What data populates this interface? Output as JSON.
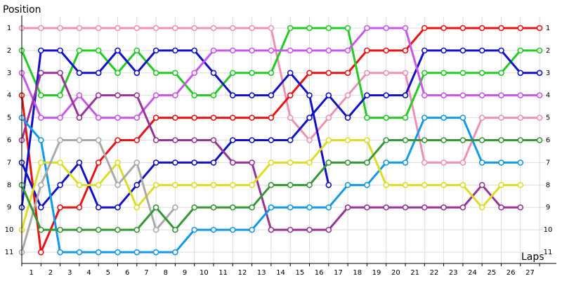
{
  "chart_data": {
    "type": "lap",
    "y_label": "Position",
    "x_label": "Laps",
    "lap_labels": [
      "1",
      "2",
      "3",
      "4",
      "5",
      "6",
      "7",
      "8",
      "9",
      "10",
      "11",
      "12",
      "13",
      "14",
      "15",
      "16",
      "17",
      "18",
      "19",
      "20",
      "21",
      "22",
      "23",
      "24",
      "25",
      "26",
      "27"
    ],
    "ylim": [
      11.5,
      0.5
    ],
    "yticks": [
      1,
      2,
      3,
      4,
      5,
      6,
      7,
      8,
      9,
      10,
      11
    ],
    "grid": true,
    "series": [
      {
        "color": "#f090b4",
        "values": [
          1,
          1,
          1,
          1,
          1,
          1,
          1,
          1,
          1,
          1,
          1,
          1,
          1,
          1,
          5,
          6,
          5,
          4,
          3,
          3,
          3,
          7,
          7,
          7,
          5,
          5,
          5,
          5
        ]
      },
      {
        "color": "#ee1111",
        "values": [
          4,
          11,
          9,
          9,
          7,
          6,
          6,
          5,
          5,
          5,
          5,
          5,
          5,
          5,
          4,
          3,
          3,
          3,
          2,
          2,
          2,
          1,
          1,
          1,
          1,
          1,
          1,
          1
        ]
      },
      {
        "color": "#22cc22",
        "values": [
          2,
          4,
          4,
          2,
          2,
          3,
          2,
          3,
          3,
          4,
          4,
          3,
          3,
          3,
          1,
          1,
          1,
          1,
          5,
          5,
          5,
          3,
          3,
          3,
          3,
          3,
          2,
          2
        ]
      },
      {
        "color": "#1111cc",
        "values": [
          9,
          2,
          2,
          3,
          3,
          2,
          3,
          2,
          2,
          2,
          3,
          4,
          4,
          4,
          3,
          4,
          8,
          null,
          null,
          null,
          null,
          null,
          null,
          null,
          null,
          null,
          null,
          null
        ]
      },
      {
        "color": "#1111cc",
        "values": [
          7,
          9,
          8,
          7,
          9,
          9,
          8,
          7,
          7,
          7,
          7,
          6,
          6,
          6,
          6,
          5,
          4,
          5,
          4,
          4,
          4,
          2,
          2,
          2,
          2,
          2,
          3,
          3
        ]
      },
      {
        "color": "#cc55ee",
        "values": [
          3,
          5,
          5,
          4,
          5,
          5,
          5,
          4,
          4,
          3,
          2,
          2,
          2,
          2,
          2,
          2,
          2,
          2,
          1,
          1,
          1,
          4,
          4,
          4,
          4,
          4,
          4,
          4
        ]
      },
      {
        "color": "#993399",
        "values": [
          6,
          3,
          3,
          5,
          4,
          4,
          4,
          6,
          6,
          6,
          6,
          7,
          7,
          10,
          10,
          10,
          10,
          9,
          9,
          9,
          9,
          9,
          9,
          9,
          8,
          9,
          9,
          null
        ]
      },
      {
        "color": "#1199ee",
        "values": [
          5,
          6,
          11,
          11,
          11,
          11,
          11,
          11,
          11,
          10,
          10,
          10,
          10,
          9,
          9,
          9,
          9,
          8,
          8,
          7,
          7,
          5,
          5,
          5,
          7,
          7,
          7,
          null
        ]
      },
      {
        "color": "#dddd22",
        "values": [
          10,
          7,
          7,
          8,
          8,
          7,
          9,
          8,
          8,
          8,
          8,
          8,
          8,
          7,
          7,
          7,
          6,
          6,
          6,
          8,
          8,
          8,
          8,
          8,
          9,
          8,
          8,
          null
        ]
      },
      {
        "color": "#aaaaaa",
        "values": [
          11,
          8,
          6,
          6,
          6,
          8,
          7,
          10,
          9,
          null,
          null,
          null,
          null,
          null,
          null,
          null,
          null,
          null,
          null,
          null,
          null,
          null,
          null,
          null,
          null,
          null,
          null,
          null
        ]
      },
      {
        "color": "#339933",
        "values": [
          8,
          10,
          10,
          10,
          10,
          10,
          10,
          9,
          10,
          9,
          9,
          9,
          9,
          8,
          8,
          8,
          7,
          7,
          7,
          6,
          6,
          6,
          6,
          6,
          6,
          6,
          6,
          6
        ]
      }
    ]
  }
}
